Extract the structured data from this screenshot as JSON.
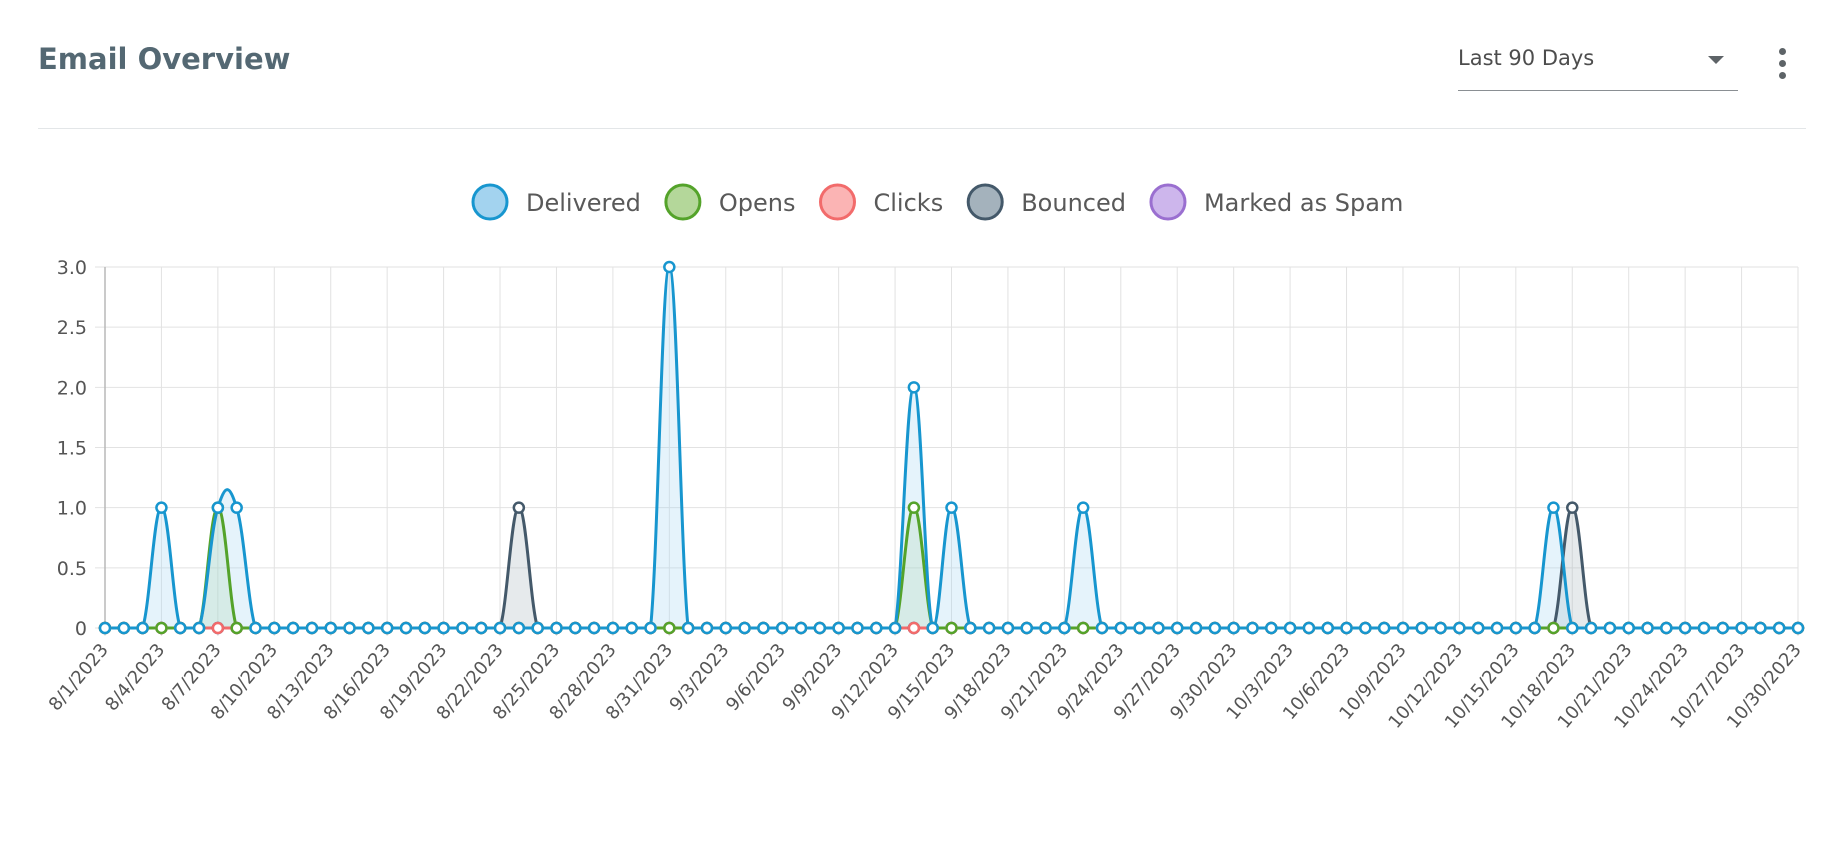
{
  "header": {
    "title": "Email Overview",
    "range_value": "Last 90 Days"
  },
  "chart_data": {
    "type": "line",
    "x_label_every": 3,
    "x": [
      "8/1/2023",
      "8/2/2023",
      "8/3/2023",
      "8/4/2023",
      "8/5/2023",
      "8/6/2023",
      "8/7/2023",
      "8/8/2023",
      "8/9/2023",
      "8/10/2023",
      "8/11/2023",
      "8/12/2023",
      "8/13/2023",
      "8/14/2023",
      "8/15/2023",
      "8/16/2023",
      "8/17/2023",
      "8/18/2023",
      "8/19/2023",
      "8/20/2023",
      "8/21/2023",
      "8/22/2023",
      "8/23/2023",
      "8/24/2023",
      "8/25/2023",
      "8/26/2023",
      "8/27/2023",
      "8/28/2023",
      "8/29/2023",
      "8/30/2023",
      "8/31/2023",
      "9/1/2023",
      "9/2/2023",
      "9/3/2023",
      "9/4/2023",
      "9/5/2023",
      "9/6/2023",
      "9/7/2023",
      "9/8/2023",
      "9/9/2023",
      "9/10/2023",
      "9/11/2023",
      "9/12/2023",
      "9/13/2023",
      "9/14/2023",
      "9/15/2023",
      "9/16/2023",
      "9/17/2023",
      "9/18/2023",
      "9/19/2023",
      "9/20/2023",
      "9/21/2023",
      "9/22/2023",
      "9/23/2023",
      "9/24/2023",
      "9/25/2023",
      "9/26/2023",
      "9/27/2023",
      "9/28/2023",
      "9/29/2023",
      "9/30/2023",
      "10/1/2023",
      "10/2/2023",
      "10/3/2023",
      "10/4/2023",
      "10/5/2023",
      "10/6/2023",
      "10/7/2023",
      "10/8/2023",
      "10/9/2023",
      "10/10/2023",
      "10/11/2023",
      "10/12/2023",
      "10/13/2023",
      "10/14/2023",
      "10/15/2023",
      "10/16/2023",
      "10/17/2023",
      "10/18/2023",
      "10/19/2023",
      "10/20/2023",
      "10/21/2023",
      "10/22/2023",
      "10/23/2023",
      "10/24/2023",
      "10/25/2023",
      "10/26/2023",
      "10/27/2023",
      "10/28/2023",
      "10/29/2023",
      "10/30/2023"
    ],
    "series": [
      {
        "name": "Delivered",
        "color": "#1796cf",
        "fill": "#a3d3ef",
        "values": [
          0,
          0,
          0,
          1,
          0,
          0,
          1,
          1,
          0,
          0,
          0,
          0,
          0,
          0,
          0,
          0,
          0,
          0,
          0,
          0,
          0,
          0,
          0,
          0,
          0,
          0,
          0,
          0,
          0,
          0,
          3,
          0,
          0,
          0,
          0,
          0,
          0,
          0,
          0,
          0,
          0,
          0,
          0,
          2,
          0,
          1,
          0,
          0,
          0,
          0,
          0,
          0,
          1,
          0,
          0,
          0,
          0,
          0,
          0,
          0,
          0,
          0,
          0,
          0,
          0,
          0,
          0,
          0,
          0,
          0,
          0,
          0,
          0,
          0,
          0,
          0,
          0,
          1,
          0,
          0,
          0,
          0,
          0,
          0,
          0,
          0,
          0,
          0,
          0,
          0,
          0
        ]
      },
      {
        "name": "Opens",
        "color": "#54a32a",
        "fill": "#b4d79a",
        "values": [
          0,
          0,
          0,
          0,
          0,
          0,
          1,
          0,
          0,
          0,
          0,
          0,
          0,
          0,
          0,
          0,
          0,
          0,
          0,
          0,
          0,
          0,
          0,
          0,
          0,
          0,
          0,
          0,
          0,
          0,
          0,
          0,
          0,
          0,
          0,
          0,
          0,
          0,
          0,
          0,
          0,
          0,
          0,
          1,
          0,
          0,
          0,
          0,
          0,
          0,
          0,
          0,
          0,
          0,
          0,
          0,
          0,
          0,
          0,
          0,
          0,
          0,
          0,
          0,
          0,
          0,
          0,
          0,
          0,
          0,
          0,
          0,
          0,
          0,
          0,
          0,
          0,
          0,
          0,
          0,
          0,
          0,
          0,
          0,
          0,
          0,
          0,
          0,
          0,
          0,
          0
        ]
      },
      {
        "name": "Clicks",
        "color": "#f26b6b",
        "fill": "#fbb4b4",
        "values": [
          0,
          0,
          0,
          0,
          0,
          0,
          0,
          0,
          0,
          0,
          0,
          0,
          0,
          0,
          0,
          0,
          0,
          0,
          0,
          0,
          0,
          0,
          0,
          0,
          0,
          0,
          0,
          0,
          0,
          0,
          0,
          0,
          0,
          0,
          0,
          0,
          0,
          0,
          0,
          0,
          0,
          0,
          0,
          0,
          0,
          0,
          0,
          0,
          0,
          0,
          0,
          0,
          0,
          0,
          0,
          0,
          0,
          0,
          0,
          0,
          0,
          0,
          0,
          0,
          0,
          0,
          0,
          0,
          0,
          0,
          0,
          0,
          0,
          0,
          0,
          0,
          0,
          0,
          0,
          0,
          0,
          0,
          0,
          0,
          0,
          0,
          0,
          0,
          0,
          0,
          0
        ]
      },
      {
        "name": "Bounced",
        "color": "#44596a",
        "fill": "#a4b2bc",
        "values": [
          0,
          0,
          0,
          0,
          0,
          0,
          0,
          0,
          0,
          0,
          0,
          0,
          0,
          0,
          0,
          0,
          0,
          0,
          0,
          0,
          0,
          0,
          1,
          0,
          0,
          0,
          0,
          0,
          0,
          0,
          0,
          0,
          0,
          0,
          0,
          0,
          0,
          0,
          0,
          0,
          0,
          0,
          0,
          0,
          0,
          0,
          0,
          0,
          0,
          0,
          0,
          0,
          0,
          0,
          0,
          0,
          0,
          0,
          0,
          0,
          0,
          0,
          0,
          0,
          0,
          0,
          0,
          0,
          0,
          0,
          0,
          0,
          0,
          0,
          0,
          0,
          0,
          0,
          1,
          0,
          0,
          0,
          0,
          0,
          0,
          0,
          0,
          0,
          0,
          0,
          0
        ]
      },
      {
        "name": "Marked as Spam",
        "color": "#9a6fd0",
        "fill": "#cdb6ec",
        "values": [
          0,
          0,
          0,
          0,
          0,
          0,
          0,
          0,
          0,
          0,
          0,
          0,
          0,
          0,
          0,
          0,
          0,
          0,
          0,
          0,
          0,
          0,
          0,
          0,
          0,
          0,
          0,
          0,
          0,
          0,
          0,
          0,
          0,
          0,
          0,
          0,
          0,
          0,
          0,
          0,
          0,
          0,
          0,
          0,
          0,
          0,
          0,
          0,
          0,
          0,
          0,
          0,
          0,
          0,
          0,
          0,
          0,
          0,
          0,
          0,
          0,
          0,
          0,
          0,
          0,
          0,
          0,
          0,
          0,
          0,
          0,
          0,
          0,
          0,
          0,
          0,
          0,
          0,
          0,
          0,
          0,
          0,
          0,
          0,
          0,
          0,
          0,
          0,
          0,
          0,
          0
        ]
      }
    ],
    "y_ticks": [
      "0",
      "0.5",
      "1.0",
      "1.5",
      "2.0",
      "2.5",
      "3.0"
    ],
    "ylim": [
      0,
      3
    ],
    "grid": true,
    "legend": "top-center"
  }
}
